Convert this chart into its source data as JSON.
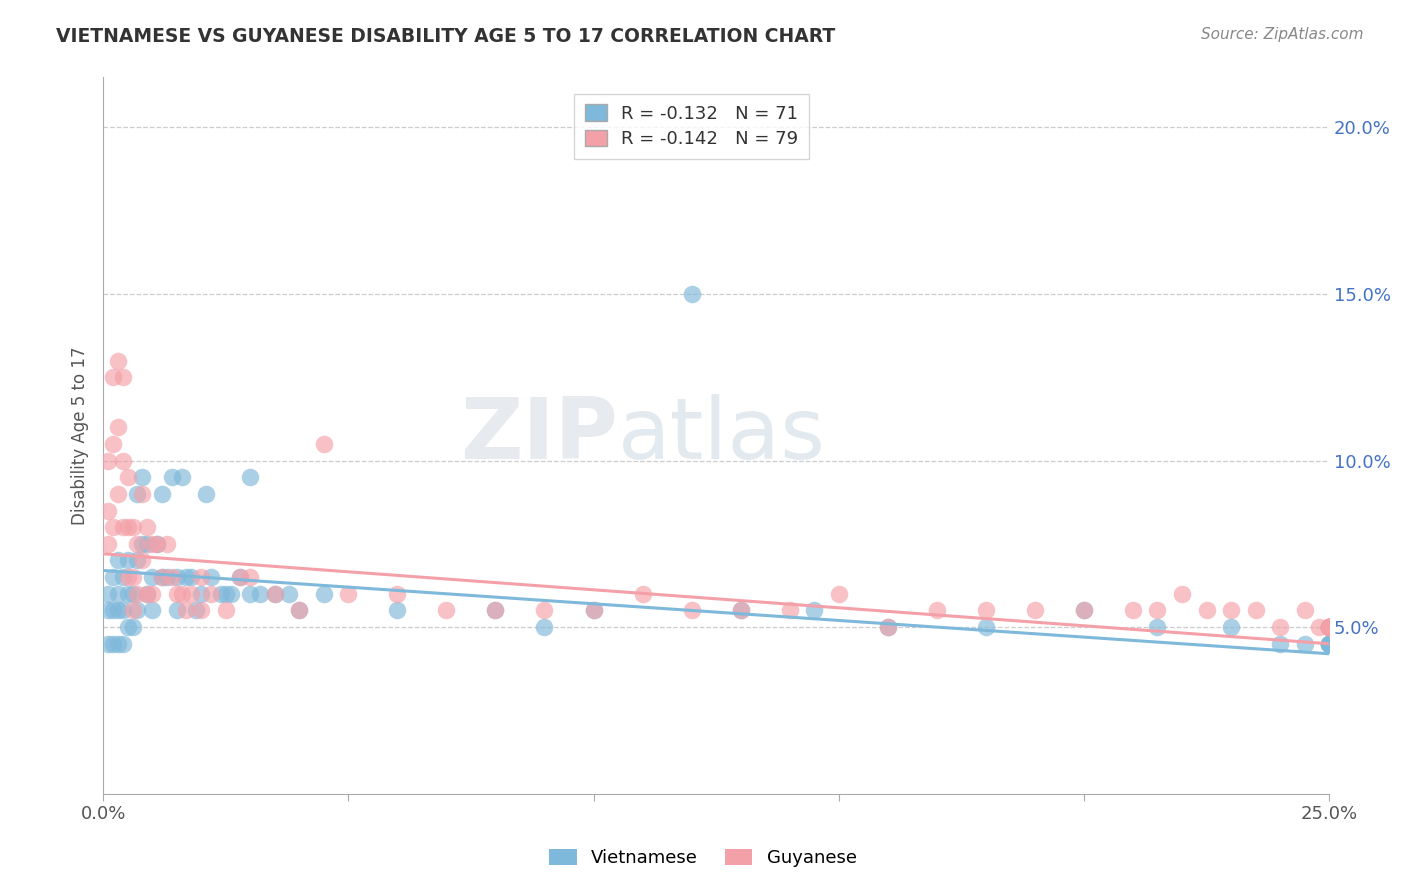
{
  "title": "VIETNAMESE VS GUYANESE DISABILITY AGE 5 TO 17 CORRELATION CHART",
  "source": "Source: ZipAtlas.com",
  "ylabel": "Disability Age 5 to 17",
  "xlim": [
    0.0,
    0.25
  ],
  "ylim": [
    0.0,
    0.215
  ],
  "xticks": [
    0.0,
    0.05,
    0.1,
    0.15,
    0.2,
    0.25
  ],
  "xtick_labels": [
    "0.0%",
    "",
    "",
    "",
    "",
    "25.0%"
  ],
  "ytick_labels_right": [
    "5.0%",
    "10.0%",
    "15.0%",
    "20.0%"
  ],
  "ytick_vals_right": [
    0.05,
    0.1,
    0.15,
    0.2
  ],
  "legend_r1": "R = -0.132",
  "legend_n1": "N = 71",
  "legend_r2": "R = -0.142",
  "legend_n2": "N = 79",
  "color_vietnamese": "#7EB8DA",
  "color_guyanese": "#F4A0A8",
  "background_color": "#ffffff",
  "viet_x": [
    0.001,
    0.001,
    0.001,
    0.002,
    0.002,
    0.002,
    0.003,
    0.003,
    0.003,
    0.003,
    0.004,
    0.004,
    0.004,
    0.005,
    0.005,
    0.005,
    0.006,
    0.006,
    0.007,
    0.007,
    0.007,
    0.008,
    0.008,
    0.009,
    0.009,
    0.01,
    0.01,
    0.011,
    0.012,
    0.012,
    0.013,
    0.014,
    0.015,
    0.015,
    0.016,
    0.017,
    0.018,
    0.019,
    0.02,
    0.021,
    0.022,
    0.024,
    0.025,
    0.026,
    0.028,
    0.03,
    0.03,
    0.032,
    0.035,
    0.038,
    0.04,
    0.045,
    0.06,
    0.08,
    0.09,
    0.1,
    0.12,
    0.13,
    0.145,
    0.16,
    0.18,
    0.2,
    0.215,
    0.23,
    0.24,
    0.245,
    0.25,
    0.25,
    0.25,
    0.25,
    0.25
  ],
  "viet_y": [
    0.06,
    0.055,
    0.045,
    0.065,
    0.055,
    0.045,
    0.07,
    0.06,
    0.055,
    0.045,
    0.065,
    0.055,
    0.045,
    0.07,
    0.06,
    0.05,
    0.06,
    0.05,
    0.09,
    0.07,
    0.055,
    0.095,
    0.075,
    0.075,
    0.06,
    0.065,
    0.055,
    0.075,
    0.09,
    0.065,
    0.065,
    0.095,
    0.065,
    0.055,
    0.095,
    0.065,
    0.065,
    0.055,
    0.06,
    0.09,
    0.065,
    0.06,
    0.06,
    0.06,
    0.065,
    0.095,
    0.06,
    0.06,
    0.06,
    0.06,
    0.055,
    0.06,
    0.055,
    0.055,
    0.05,
    0.055,
    0.15,
    0.055,
    0.055,
    0.05,
    0.05,
    0.055,
    0.05,
    0.05,
    0.045,
    0.045,
    0.045,
    0.045,
    0.045,
    0.045,
    0.045
  ],
  "guya_x": [
    0.001,
    0.001,
    0.001,
    0.002,
    0.002,
    0.002,
    0.003,
    0.003,
    0.003,
    0.004,
    0.004,
    0.004,
    0.005,
    0.005,
    0.005,
    0.006,
    0.006,
    0.006,
    0.007,
    0.007,
    0.008,
    0.008,
    0.009,
    0.009,
    0.01,
    0.01,
    0.011,
    0.012,
    0.013,
    0.014,
    0.015,
    0.016,
    0.017,
    0.018,
    0.02,
    0.02,
    0.022,
    0.025,
    0.028,
    0.03,
    0.035,
    0.04,
    0.045,
    0.05,
    0.06,
    0.07,
    0.08,
    0.09,
    0.1,
    0.11,
    0.12,
    0.13,
    0.14,
    0.15,
    0.16,
    0.17,
    0.18,
    0.19,
    0.2,
    0.21,
    0.215,
    0.22,
    0.225,
    0.23,
    0.235,
    0.24,
    0.245,
    0.248,
    0.25,
    0.25,
    0.25,
    0.25,
    0.25,
    0.25,
    0.25,
    0.25,
    0.25,
    0.25,
    0.25
  ],
  "guya_y": [
    0.1,
    0.085,
    0.075,
    0.125,
    0.105,
    0.08,
    0.13,
    0.11,
    0.09,
    0.125,
    0.1,
    0.08,
    0.095,
    0.08,
    0.065,
    0.08,
    0.065,
    0.055,
    0.075,
    0.06,
    0.09,
    0.07,
    0.08,
    0.06,
    0.075,
    0.06,
    0.075,
    0.065,
    0.075,
    0.065,
    0.06,
    0.06,
    0.055,
    0.06,
    0.065,
    0.055,
    0.06,
    0.055,
    0.065,
    0.065,
    0.06,
    0.055,
    0.105,
    0.06,
    0.06,
    0.055,
    0.055,
    0.055,
    0.055,
    0.06,
    0.055,
    0.055,
    0.055,
    0.06,
    0.05,
    0.055,
    0.055,
    0.055,
    0.055,
    0.055,
    0.055,
    0.06,
    0.055,
    0.055,
    0.055,
    0.05,
    0.055,
    0.05,
    0.05,
    0.05,
    0.05,
    0.05,
    0.05,
    0.05,
    0.05,
    0.05,
    0.05,
    0.05,
    0.05
  ]
}
